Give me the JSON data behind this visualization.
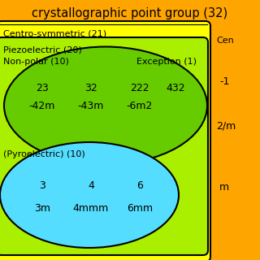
{
  "title": "crystallographic point group (32)",
  "bg_color": "#FFA500",
  "title_color": "#000000",
  "title_fontsize": 10.5,
  "centro_label": "Centro-symmetric (21)",
  "centro_color": "#FFFF00",
  "piezo_label": "Piezoelectric (20)",
  "piezo_color": "#AAEE00",
  "nonpolar_label": "Non-polar (10)",
  "nonpolar_color": "#66CC00",
  "pyro_label": "(Pyroelectric) (10)",
  "pyro_color": "#55DDFF",
  "exception_label": "Exception (1)",
  "nonpolar_items_row1": [
    "23",
    "32",
    "222"
  ],
  "nonpolar_items_row2": [
    "-42m",
    "-43m",
    "-6m2"
  ],
  "exception_item": "432",
  "pyro_items_row1": [
    "3",
    "4",
    "6"
  ],
  "pyro_items_row2": [
    "3m",
    "4mmm",
    "6mm"
  ],
  "side_label": "Cen",
  "side_items": [
    "-1",
    "2/m",
    "m"
  ],
  "label_fontsize": 8.0,
  "item_fontsize": 9.0
}
